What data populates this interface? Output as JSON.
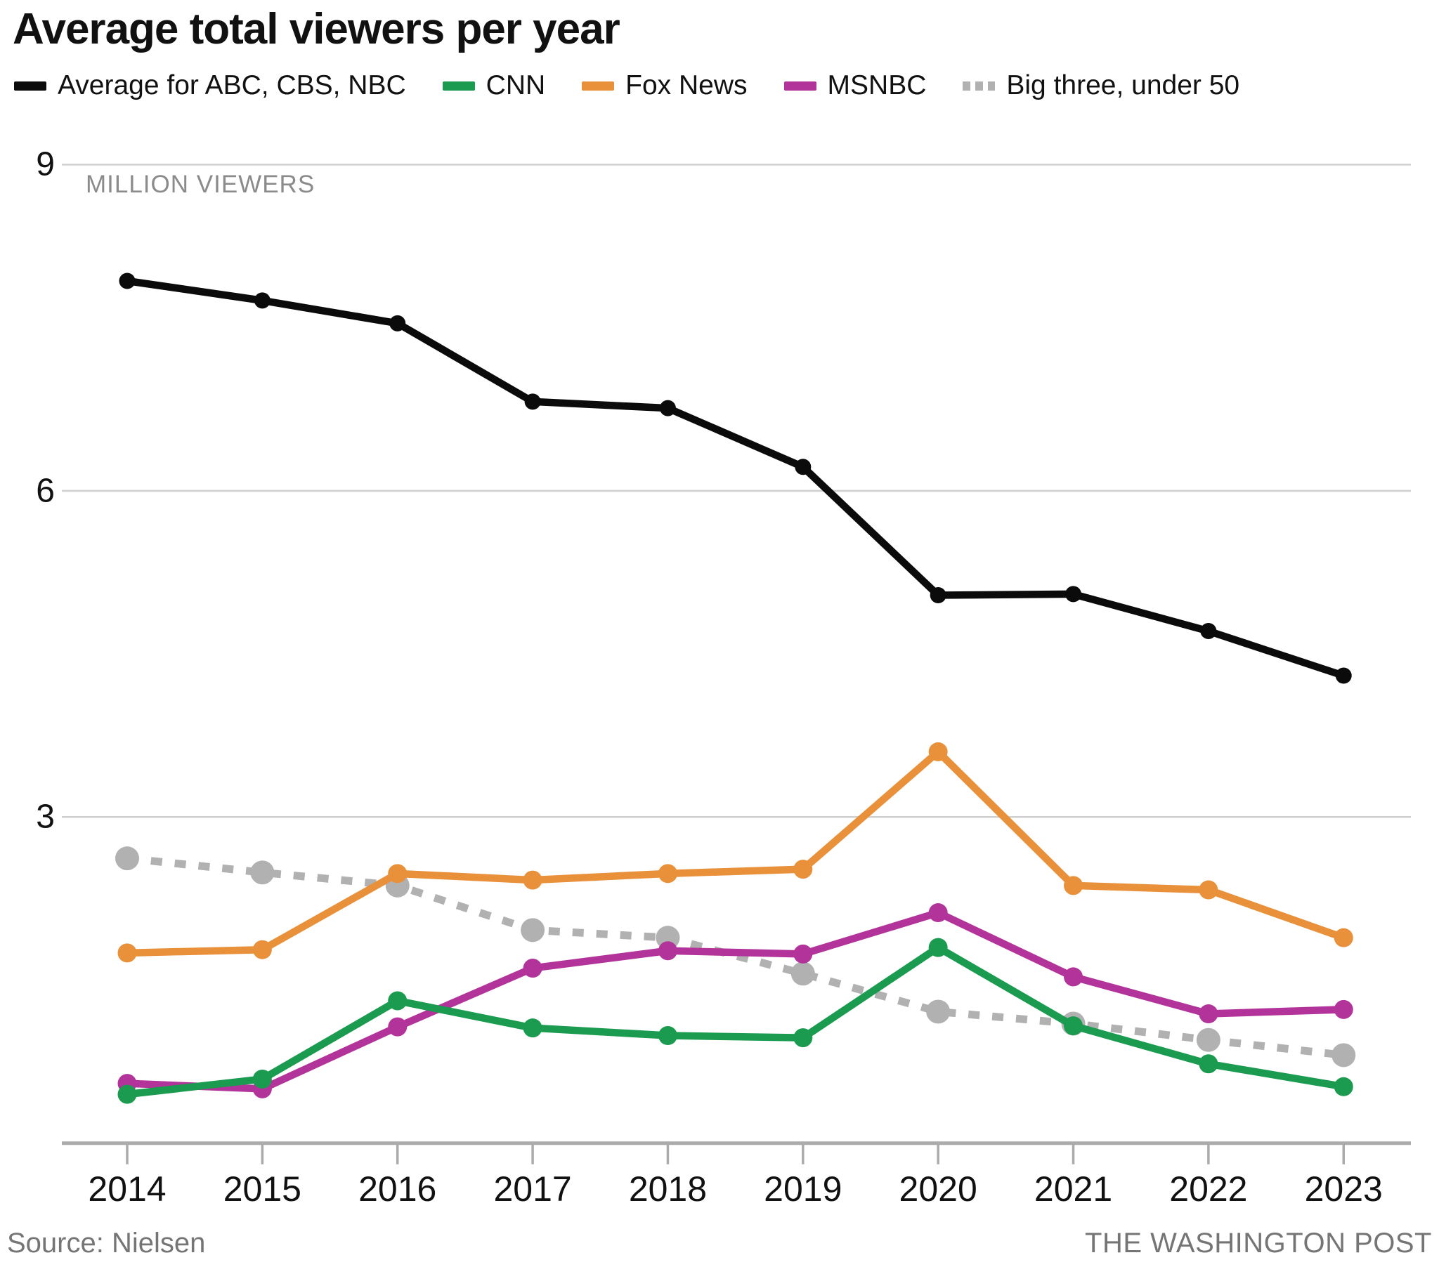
{
  "title": "Average total viewers per year",
  "legend": [
    {
      "label": "Average for ABC, CBS, NBC",
      "color": "#0b0b0b",
      "style": "solid"
    },
    {
      "label": "CNN",
      "color": "#1a9b4f",
      "style": "solid"
    },
    {
      "label": "Fox News",
      "color": "#e8903a",
      "style": "solid"
    },
    {
      "label": "MSNBC",
      "color": "#b2349a",
      "style": "solid"
    },
    {
      "label": "Big three, under 50",
      "color": "#b1b1b1",
      "style": "dotted"
    }
  ],
  "unit_label": "MILLION VIEWERS",
  "source": "Source: Nielsen",
  "credit": "THE WASHINGTON POST",
  "colors": {
    "gridline": "#cfcfcf",
    "axis": "#ababab",
    "text_gray": "#8b8b8b"
  },
  "chart_data": {
    "type": "line",
    "title": "Average total viewers per year",
    "x": [
      2014,
      2015,
      2016,
      2017,
      2018,
      2019,
      2020,
      2021,
      2022,
      2023
    ],
    "ylabel": "MILLION VIEWERS",
    "ylim": [
      0,
      9
    ],
    "y_ticks": [
      9,
      6,
      3
    ],
    "grid": true,
    "legend_position": "top",
    "series": [
      {
        "name": "Big three, under 50",
        "values": [
          2.62,
          2.49,
          2.37,
          1.96,
          1.89,
          1.56,
          1.21,
          1.1,
          0.95,
          0.81
        ]
      },
      {
        "name": "MSNBC",
        "values": [
          0.55,
          0.5,
          1.07,
          1.61,
          1.77,
          1.74,
          2.12,
          1.53,
          1.19,
          1.23
        ]
      },
      {
        "name": "CNN",
        "values": [
          0.45,
          0.59,
          1.31,
          1.06,
          0.99,
          0.97,
          1.8,
          1.08,
          0.73,
          0.52
        ]
      },
      {
        "name": "Fox News",
        "values": [
          1.75,
          1.78,
          2.48,
          2.42,
          2.48,
          2.52,
          3.6,
          2.37,
          2.33,
          1.89
        ]
      },
      {
        "name": "Average for ABC, CBS, NBC",
        "values": [
          7.93,
          7.75,
          7.54,
          6.82,
          6.76,
          6.22,
          5.04,
          5.05,
          4.71,
          4.3
        ]
      }
    ]
  }
}
